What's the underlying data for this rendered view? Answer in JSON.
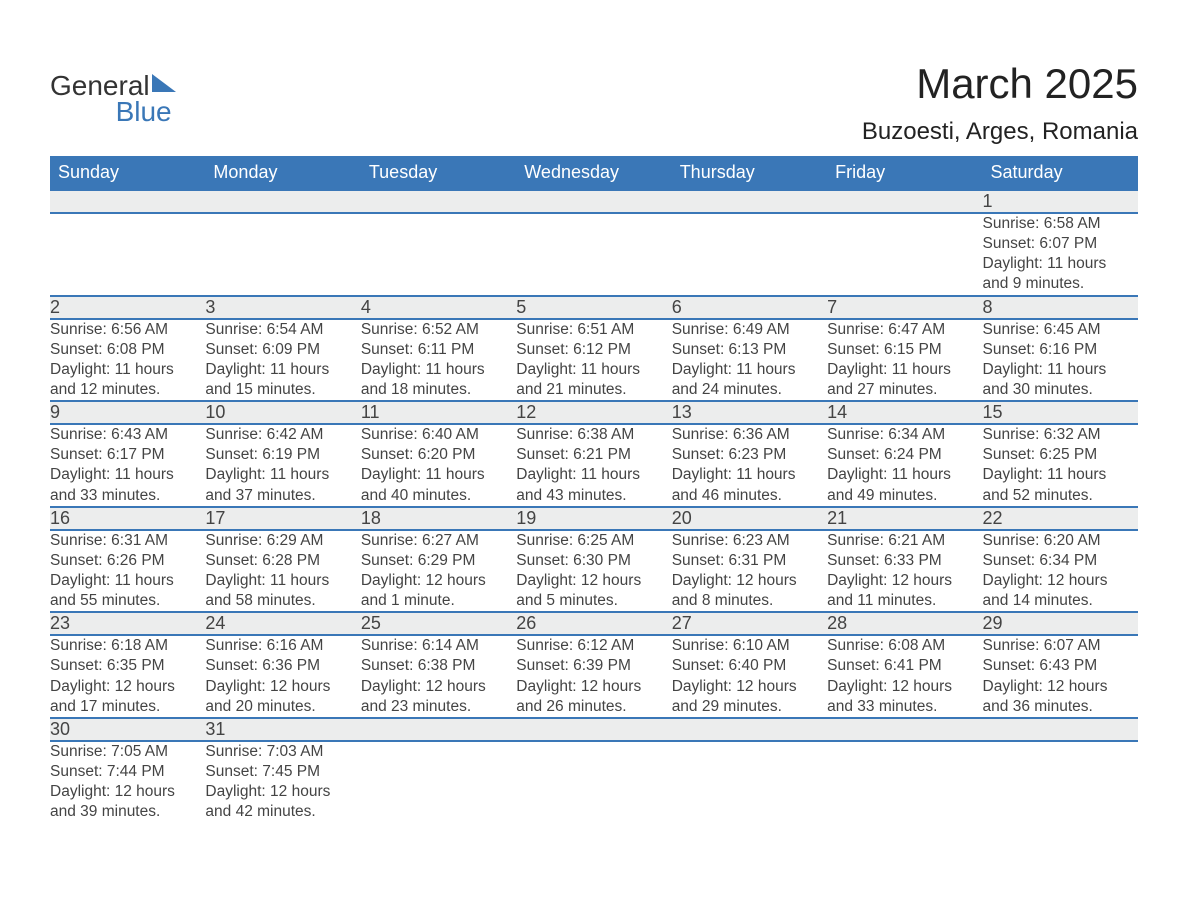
{
  "brand": {
    "word1": "General",
    "word2": "Blue"
  },
  "title": "March 2025",
  "location": "Buzoesti, Arges, Romania",
  "colors": {
    "header_bg": "#3a77b7",
    "header_text": "#ffffff",
    "daynum_bg": "#eceded",
    "row_divider": "#3a77b7",
    "body_text": "#444444",
    "page_bg": "#ffffff"
  },
  "typography": {
    "title_fontsize": 42,
    "location_fontsize": 24,
    "header_fontsize": 18,
    "daynum_fontsize": 18,
    "cell_fontsize": 15.5
  },
  "layout": {
    "columns": 7,
    "weeks": 6
  },
  "weekday_headers": [
    "Sunday",
    "Monday",
    "Tuesday",
    "Wednesday",
    "Thursday",
    "Friday",
    "Saturday"
  ],
  "labels": {
    "sunrise": "Sunrise:",
    "sunset": "Sunset:",
    "daylight": "Daylight:"
  },
  "weeks": [
    [
      null,
      null,
      null,
      null,
      null,
      null,
      {
        "day": "1",
        "sunrise": "6:58 AM",
        "sunset": "6:07 PM",
        "daylight1": "11 hours",
        "daylight2": "and 9 minutes."
      }
    ],
    [
      {
        "day": "2",
        "sunrise": "6:56 AM",
        "sunset": "6:08 PM",
        "daylight1": "11 hours",
        "daylight2": "and 12 minutes."
      },
      {
        "day": "3",
        "sunrise": "6:54 AM",
        "sunset": "6:09 PM",
        "daylight1": "11 hours",
        "daylight2": "and 15 minutes."
      },
      {
        "day": "4",
        "sunrise": "6:52 AM",
        "sunset": "6:11 PM",
        "daylight1": "11 hours",
        "daylight2": "and 18 minutes."
      },
      {
        "day": "5",
        "sunrise": "6:51 AM",
        "sunset": "6:12 PM",
        "daylight1": "11 hours",
        "daylight2": "and 21 minutes."
      },
      {
        "day": "6",
        "sunrise": "6:49 AM",
        "sunset": "6:13 PM",
        "daylight1": "11 hours",
        "daylight2": "and 24 minutes."
      },
      {
        "day": "7",
        "sunrise": "6:47 AM",
        "sunset": "6:15 PM",
        "daylight1": "11 hours",
        "daylight2": "and 27 minutes."
      },
      {
        "day": "8",
        "sunrise": "6:45 AM",
        "sunset": "6:16 PM",
        "daylight1": "11 hours",
        "daylight2": "and 30 minutes."
      }
    ],
    [
      {
        "day": "9",
        "sunrise": "6:43 AM",
        "sunset": "6:17 PM",
        "daylight1": "11 hours",
        "daylight2": "and 33 minutes."
      },
      {
        "day": "10",
        "sunrise": "6:42 AM",
        "sunset": "6:19 PM",
        "daylight1": "11 hours",
        "daylight2": "and 37 minutes."
      },
      {
        "day": "11",
        "sunrise": "6:40 AM",
        "sunset": "6:20 PM",
        "daylight1": "11 hours",
        "daylight2": "and 40 minutes."
      },
      {
        "day": "12",
        "sunrise": "6:38 AM",
        "sunset": "6:21 PM",
        "daylight1": "11 hours",
        "daylight2": "and 43 minutes."
      },
      {
        "day": "13",
        "sunrise": "6:36 AM",
        "sunset": "6:23 PM",
        "daylight1": "11 hours",
        "daylight2": "and 46 minutes."
      },
      {
        "day": "14",
        "sunrise": "6:34 AM",
        "sunset": "6:24 PM",
        "daylight1": "11 hours",
        "daylight2": "and 49 minutes."
      },
      {
        "day": "15",
        "sunrise": "6:32 AM",
        "sunset": "6:25 PM",
        "daylight1": "11 hours",
        "daylight2": "and 52 minutes."
      }
    ],
    [
      {
        "day": "16",
        "sunrise": "6:31 AM",
        "sunset": "6:26 PM",
        "daylight1": "11 hours",
        "daylight2": "and 55 minutes."
      },
      {
        "day": "17",
        "sunrise": "6:29 AM",
        "sunset": "6:28 PM",
        "daylight1": "11 hours",
        "daylight2": "and 58 minutes."
      },
      {
        "day": "18",
        "sunrise": "6:27 AM",
        "sunset": "6:29 PM",
        "daylight1": "12 hours",
        "daylight2": "and 1 minute."
      },
      {
        "day": "19",
        "sunrise": "6:25 AM",
        "sunset": "6:30 PM",
        "daylight1": "12 hours",
        "daylight2": "and 5 minutes."
      },
      {
        "day": "20",
        "sunrise": "6:23 AM",
        "sunset": "6:31 PM",
        "daylight1": "12 hours",
        "daylight2": "and 8 minutes."
      },
      {
        "day": "21",
        "sunrise": "6:21 AM",
        "sunset": "6:33 PM",
        "daylight1": "12 hours",
        "daylight2": "and 11 minutes."
      },
      {
        "day": "22",
        "sunrise": "6:20 AM",
        "sunset": "6:34 PM",
        "daylight1": "12 hours",
        "daylight2": "and 14 minutes."
      }
    ],
    [
      {
        "day": "23",
        "sunrise": "6:18 AM",
        "sunset": "6:35 PM",
        "daylight1": "12 hours",
        "daylight2": "and 17 minutes."
      },
      {
        "day": "24",
        "sunrise": "6:16 AM",
        "sunset": "6:36 PM",
        "daylight1": "12 hours",
        "daylight2": "and 20 minutes."
      },
      {
        "day": "25",
        "sunrise": "6:14 AM",
        "sunset": "6:38 PM",
        "daylight1": "12 hours",
        "daylight2": "and 23 minutes."
      },
      {
        "day": "26",
        "sunrise": "6:12 AM",
        "sunset": "6:39 PM",
        "daylight1": "12 hours",
        "daylight2": "and 26 minutes."
      },
      {
        "day": "27",
        "sunrise": "6:10 AM",
        "sunset": "6:40 PM",
        "daylight1": "12 hours",
        "daylight2": "and 29 minutes."
      },
      {
        "day": "28",
        "sunrise": "6:08 AM",
        "sunset": "6:41 PM",
        "daylight1": "12 hours",
        "daylight2": "and 33 minutes."
      },
      {
        "day": "29",
        "sunrise": "6:07 AM",
        "sunset": "6:43 PM",
        "daylight1": "12 hours",
        "daylight2": "and 36 minutes."
      }
    ],
    [
      {
        "day": "30",
        "sunrise": "7:05 AM",
        "sunset": "7:44 PM",
        "daylight1": "12 hours",
        "daylight2": "and 39 minutes."
      },
      {
        "day": "31",
        "sunrise": "7:03 AM",
        "sunset": "7:45 PM",
        "daylight1": "12 hours",
        "daylight2": "and 42 minutes."
      },
      null,
      null,
      null,
      null,
      null
    ]
  ]
}
